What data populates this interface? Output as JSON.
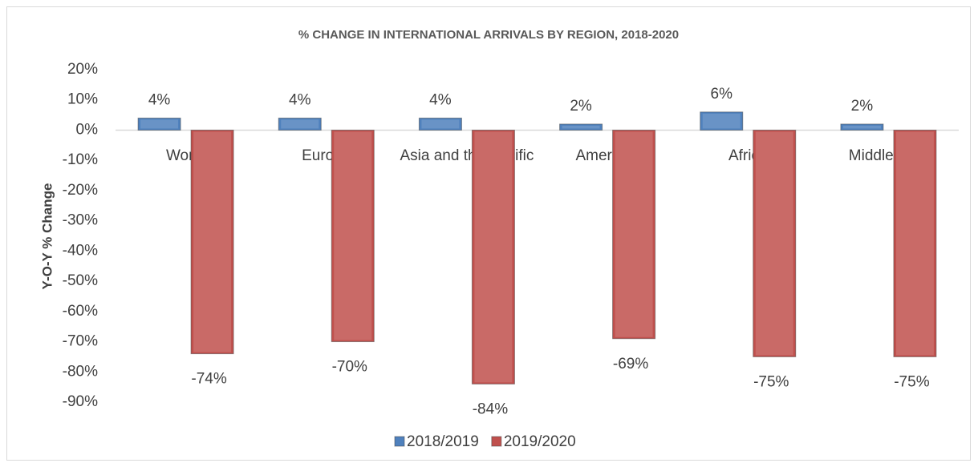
{
  "chart_data": {
    "type": "bar",
    "title": "% CHANGE IN INTERNATIONAL ARRIVALS BY REGION, 2018-2020",
    "y_label": "Y-O-Y % Change",
    "categories": [
      "World",
      "Europe",
      "Asia and the Pacific",
      "Americas",
      "Africa",
      "Middle East"
    ],
    "series": [
      {
        "name": "2018/2019",
        "color": "#4f81bd",
        "values": [
          4,
          4,
          4,
          2,
          6,
          2
        ],
        "value_labels": [
          "4%",
          "4%",
          "4%",
          "2%",
          "6%",
          "2%"
        ]
      },
      {
        "name": "2019/2020",
        "color": "#c0504d",
        "values": [
          -74,
          -70,
          -84,
          -69,
          -75,
          -75
        ],
        "value_labels": [
          "-74%",
          "-70%",
          "-84%",
          "-69%",
          "-75%",
          "-75%"
        ]
      }
    ],
    "ylim": [
      -90,
      20
    ],
    "yticks": [
      {
        "value": 20,
        "label": "20%"
      },
      {
        "value": 10,
        "label": "10%"
      },
      {
        "value": 0,
        "label": "0%"
      },
      {
        "value": -10,
        "label": "-10%"
      },
      {
        "value": -20,
        "label": "-20%"
      },
      {
        "value": -30,
        "label": "-30%"
      },
      {
        "value": -40,
        "label": "-40%"
      },
      {
        "value": -50,
        "label": "-50%"
      },
      {
        "value": -60,
        "label": "-60%"
      },
      {
        "value": -70,
        "label": "-70%"
      },
      {
        "value": -80,
        "label": "-80%"
      },
      {
        "value": -90,
        "label": "-90%"
      }
    ],
    "legend": "bottom"
  }
}
